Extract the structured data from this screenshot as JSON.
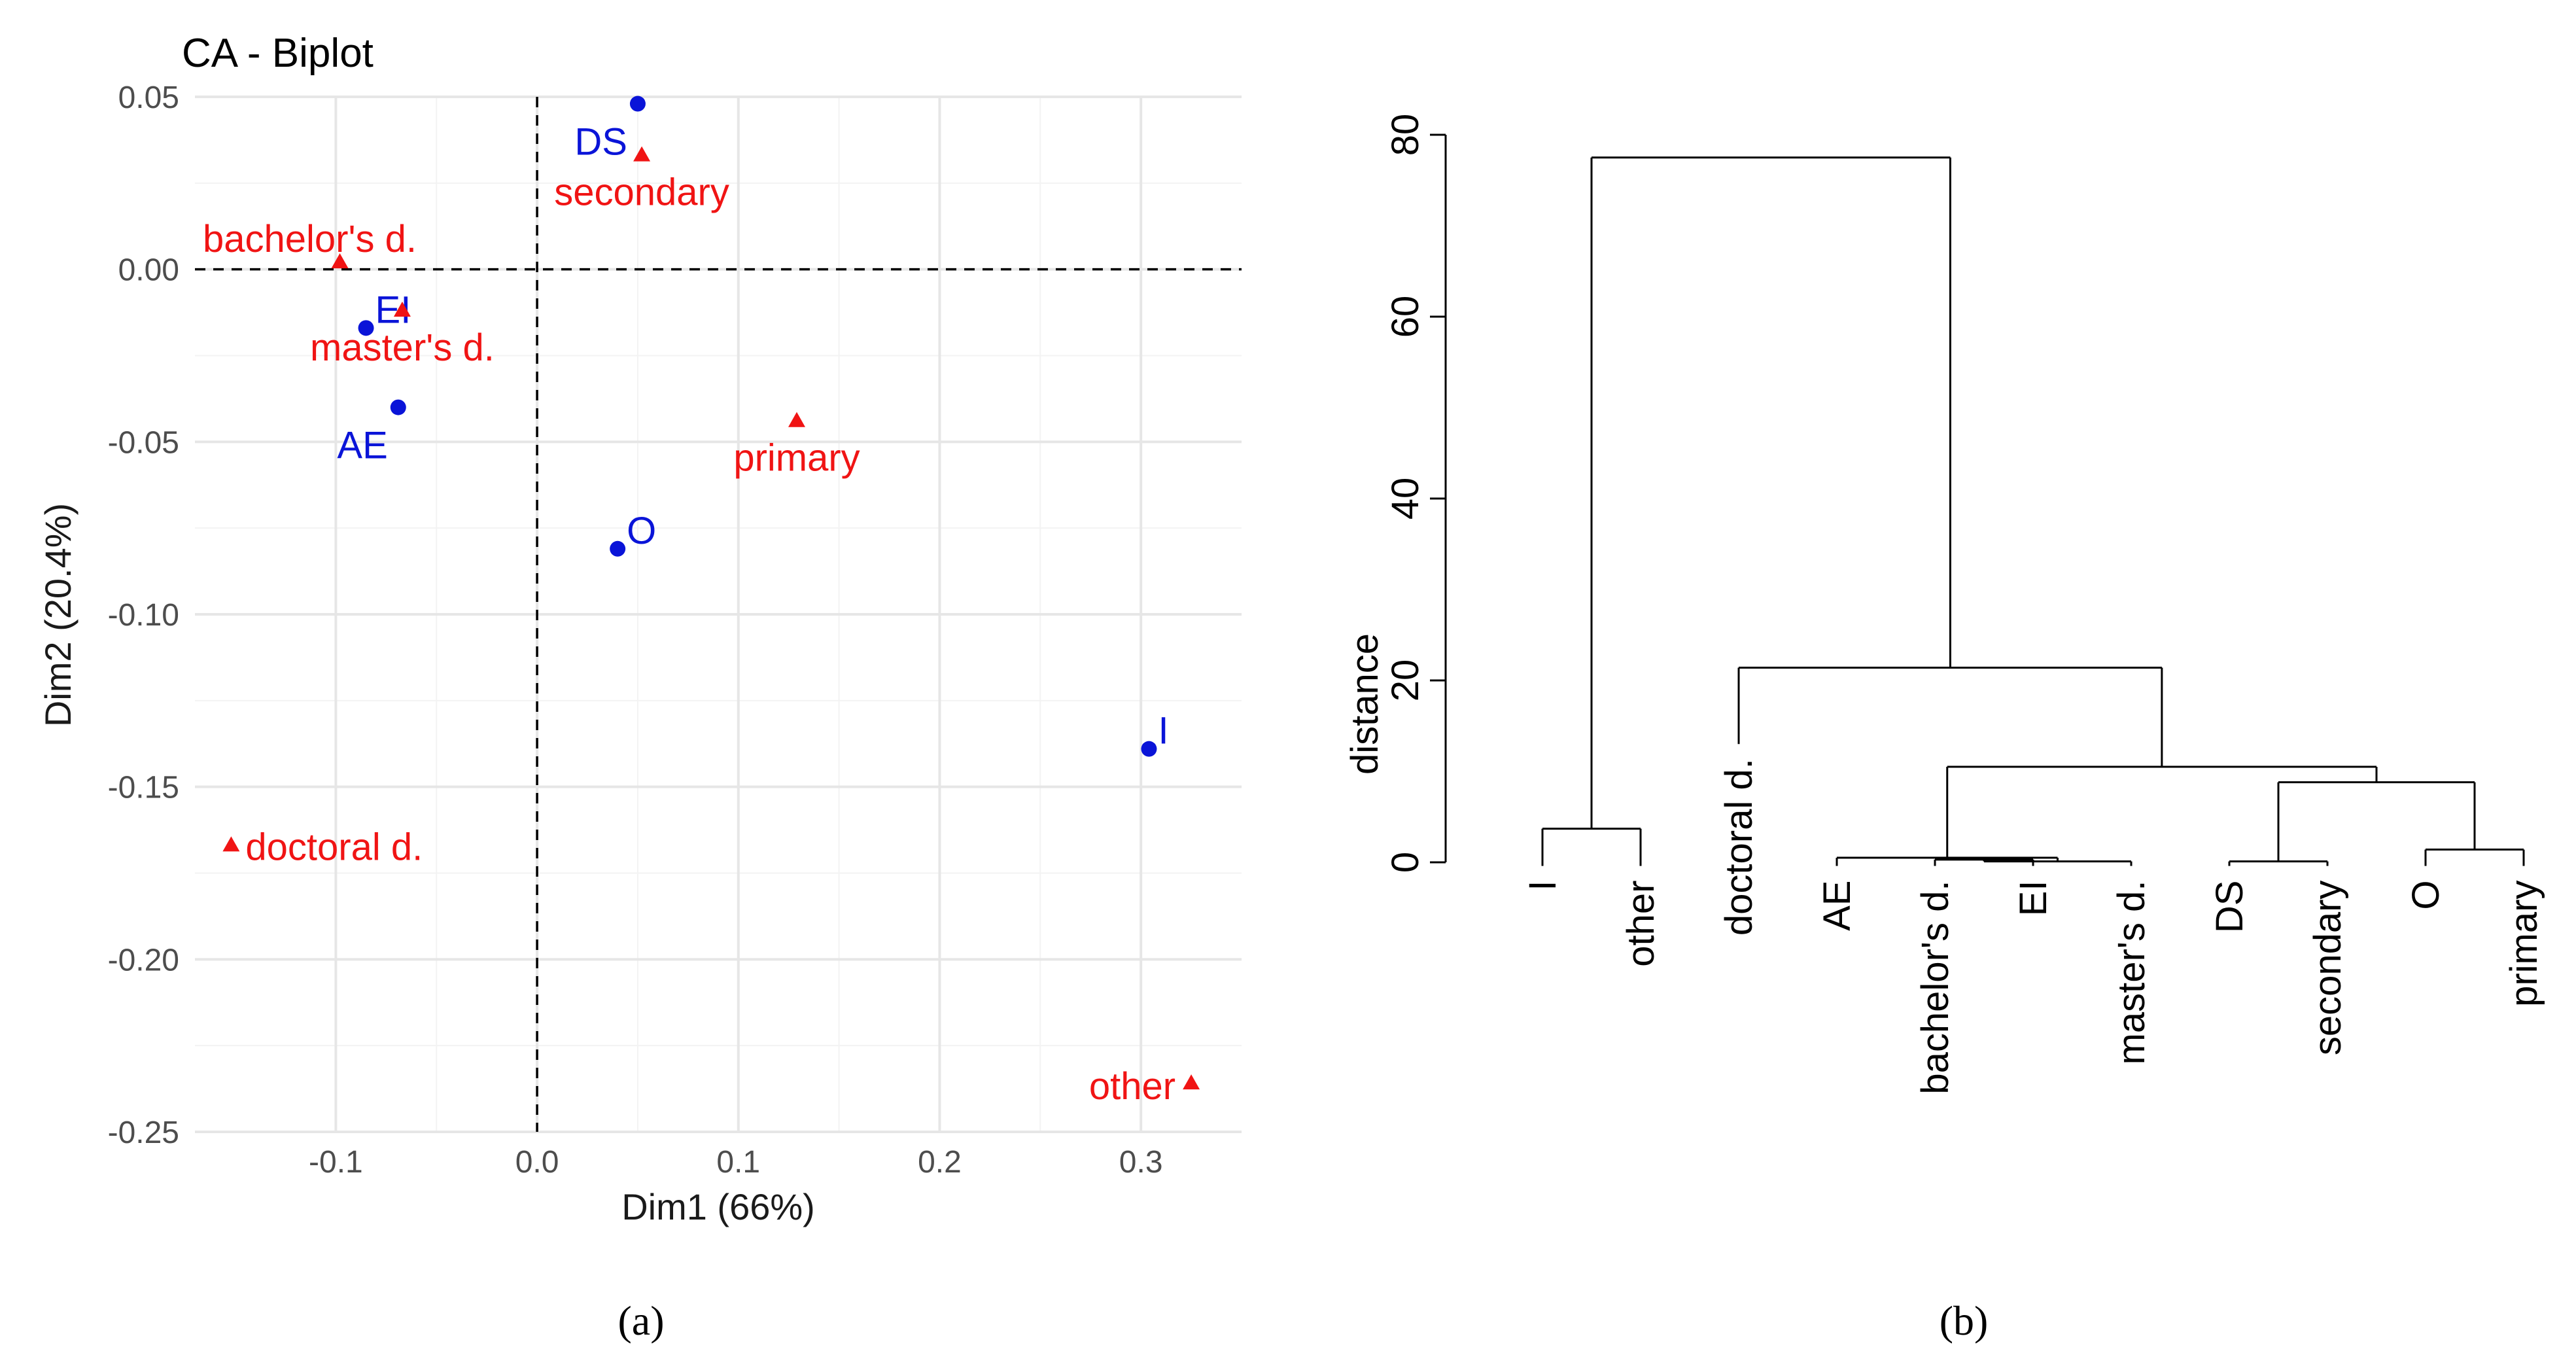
{
  "chart_data": [
    {
      "type": "scatter",
      "title": "CA - Biplot",
      "xlabel": "Dim1 (66%)",
      "ylabel": "Dim2 (20.4%)",
      "xlim": [
        -0.17,
        0.35
      ],
      "ylim": [
        -0.25,
        0.05
      ],
      "x_ticks": [
        -0.1,
        0.0,
        0.1,
        0.2,
        0.3
      ],
      "x_tick_labels": [
        "-0.1",
        "0.0",
        "0.1",
        "0.2",
        "0.3"
      ],
      "y_ticks": [
        0.05,
        0.0,
        -0.05,
        -0.1,
        -0.15,
        -0.2,
        -0.25
      ],
      "y_tick_labels": [
        "0.05",
        "0.00",
        "-0.05",
        "-0.10",
        "-0.15",
        "-0.20",
        "-0.25"
      ],
      "grid": true,
      "reference_lines": {
        "x": 0,
        "y": 0
      },
      "series": [
        {
          "name": "rows",
          "marker": "circle",
          "color": "#0a14d8",
          "points": [
            {
              "label": "DS",
              "x": 0.05,
              "y": 0.048,
              "label_pos": "below-left"
            },
            {
              "label": "EI",
              "x": -0.085,
              "y": -0.017,
              "label_pos": "above-right"
            },
            {
              "label": "AE",
              "x": -0.069,
              "y": -0.04,
              "label_pos": "below-left"
            },
            {
              "label": "O",
              "x": 0.04,
              "y": -0.081,
              "label_pos": "above-right"
            },
            {
              "label": "I",
              "x": 0.304,
              "y": -0.139,
              "label_pos": "above-right"
            }
          ]
        },
        {
          "name": "columns",
          "marker": "triangle",
          "color": "#f01414",
          "points": [
            {
              "label": "secondary",
              "x": 0.052,
              "y": 0.033,
              "label_pos": "below-center"
            },
            {
              "label": "bachelor's d.",
              "x": -0.098,
              "y": 0.002,
              "label_pos": "above-left"
            },
            {
              "label": "master's d.",
              "x": -0.067,
              "y": -0.012,
              "label_pos": "below-center"
            },
            {
              "label": "primary",
              "x": 0.129,
              "y": -0.044,
              "label_pos": "below-center"
            },
            {
              "label": "doctoral d.",
              "x": -0.152,
              "y": -0.167,
              "label_pos": "right"
            },
            {
              "label": "other",
              "x": 0.325,
              "y": -0.236,
              "label_pos": "left"
            }
          ]
        }
      ],
      "caption": "(a)"
    },
    {
      "type": "dendrogram",
      "ylabel": "distance",
      "ylim": [
        0,
        80
      ],
      "y_ticks": [
        0,
        20,
        40,
        60,
        80
      ],
      "y_tick_labels": [
        "0",
        "20",
        "40",
        "60",
        "80"
      ],
      "leaves": [
        {
          "label": "I",
          "base": -0.4
        },
        {
          "label": "other",
          "base": -0.4
        },
        {
          "label": "doctoral d.",
          "base": 13.0
        },
        {
          "label": "AE",
          "base": -0.4
        },
        {
          "label": "bachelor's d.",
          "base": -0.4
        },
        {
          "label": "EI",
          "base": -0.4
        },
        {
          "label": "master's d.",
          "base": -0.4
        },
        {
          "label": "DS",
          "base": -0.4
        },
        {
          "label": "secondary",
          "base": -0.4
        },
        {
          "label": "O",
          "base": -0.4
        },
        {
          "label": "primary",
          "base": -0.4
        }
      ],
      "merges": [
        {
          "left": -1,
          "right": -2,
          "height": 3.7
        },
        {
          "left": -5,
          "right": -6,
          "height": 0.3
        },
        {
          "left": -7,
          "right": 2,
          "height": 0.1
        },
        {
          "left": -4,
          "right": 3,
          "height": 0.5
        },
        {
          "left": -8,
          "right": -9,
          "height": 0.1
        },
        {
          "left": -10,
          "right": -11,
          "height": 1.4
        },
        {
          "left": 5,
          "right": 6,
          "height": 8.8
        },
        {
          "left": 4,
          "right": 7,
          "height": 10.5
        },
        {
          "left": -3,
          "right": 8,
          "height": 21.4
        },
        {
          "left": 1,
          "right": 9,
          "height": 77.5
        }
      ],
      "caption": "(b)"
    }
  ]
}
